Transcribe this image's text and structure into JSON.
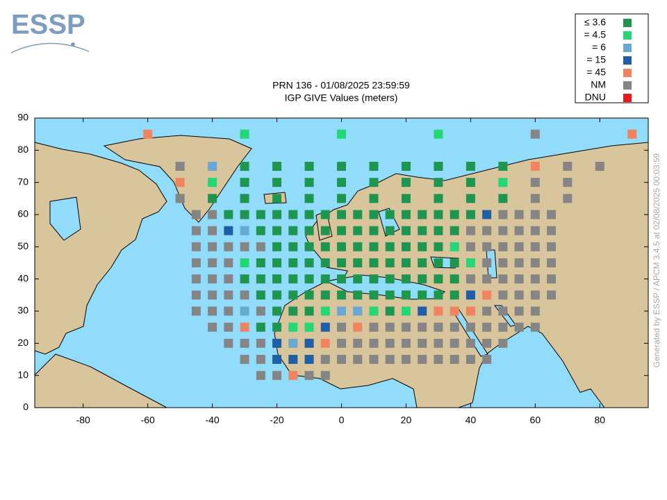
{
  "logo": "ESSP",
  "footer": "Generated by ESSP / APCM 3.4.5 at 02/08/2025 00:03:59",
  "chart_data": {
    "type": "scatter",
    "title": "PRN 136 - 01/08/2025 23:59:59",
    "subtitle": "IGP GIVE Values (meters)",
    "xlim": [
      -95,
      95
    ],
    "ylim": [
      0,
      90
    ],
    "xticks": [
      -80,
      -60,
      -40,
      -20,
      0,
      20,
      40,
      60,
      80
    ],
    "yticks": [
      0,
      10,
      20,
      30,
      40,
      50,
      60,
      70,
      80,
      90
    ],
    "series": [
      {
        "name": "≤ 3.6",
        "color": "#1e9650",
        "data": [
          [
            -30,
            75
          ],
          [
            -20,
            75
          ],
          [
            -10,
            75
          ],
          [
            0,
            75
          ],
          [
            10,
            75
          ],
          [
            20,
            75
          ],
          [
            30,
            75
          ],
          [
            40,
            75
          ],
          [
            50,
            75
          ],
          [
            -30,
            70
          ],
          [
            -20,
            70
          ],
          [
            -10,
            70
          ],
          [
            0,
            70
          ],
          [
            10,
            70
          ],
          [
            20,
            70
          ],
          [
            30,
            70
          ],
          [
            40,
            70
          ],
          [
            -40,
            65
          ],
          [
            -30,
            65
          ],
          [
            -20,
            65
          ],
          [
            -10,
            65
          ],
          [
            0,
            65
          ],
          [
            10,
            65
          ],
          [
            20,
            65
          ],
          [
            30,
            65
          ],
          [
            40,
            65
          ],
          [
            50,
            65
          ],
          [
            -35,
            60
          ],
          [
            -30,
            60
          ],
          [
            -25,
            60
          ],
          [
            -20,
            60
          ],
          [
            -15,
            60
          ],
          [
            -10,
            60
          ],
          [
            -5,
            60
          ],
          [
            0,
            60
          ],
          [
            5,
            60
          ],
          [
            10,
            60
          ],
          [
            15,
            60
          ],
          [
            20,
            60
          ],
          [
            25,
            60
          ],
          [
            30,
            60
          ],
          [
            35,
            60
          ],
          [
            40,
            60
          ],
          [
            -25,
            55
          ],
          [
            -20,
            55
          ],
          [
            -15,
            55
          ],
          [
            -10,
            55
          ],
          [
            -5,
            55
          ],
          [
            0,
            55
          ],
          [
            5,
            55
          ],
          [
            10,
            55
          ],
          [
            15,
            55
          ],
          [
            20,
            55
          ],
          [
            25,
            55
          ],
          [
            30,
            55
          ],
          [
            35,
            55
          ],
          [
            -20,
            50
          ],
          [
            -15,
            50
          ],
          [
            -10,
            50
          ],
          [
            -5,
            50
          ],
          [
            0,
            50
          ],
          [
            5,
            50
          ],
          [
            10,
            50
          ],
          [
            15,
            50
          ],
          [
            20,
            50
          ],
          [
            25,
            50
          ],
          [
            30,
            50
          ],
          [
            -25,
            45
          ],
          [
            -20,
            45
          ],
          [
            -15,
            45
          ],
          [
            -10,
            45
          ],
          [
            -5,
            45
          ],
          [
            0,
            45
          ],
          [
            5,
            45
          ],
          [
            10,
            45
          ],
          [
            15,
            45
          ],
          [
            20,
            45
          ],
          [
            25,
            45
          ],
          [
            30,
            45
          ],
          [
            35,
            45
          ],
          [
            -30,
            40
          ],
          [
            -25,
            40
          ],
          [
            -20,
            40
          ],
          [
            -15,
            40
          ],
          [
            -10,
            40
          ],
          [
            -5,
            40
          ],
          [
            0,
            40
          ],
          [
            5,
            40
          ],
          [
            10,
            40
          ],
          [
            15,
            40
          ],
          [
            20,
            40
          ],
          [
            25,
            40
          ],
          [
            30,
            40
          ],
          [
            35,
            40
          ],
          [
            -25,
            35
          ],
          [
            -20,
            35
          ],
          [
            -15,
            35
          ],
          [
            -10,
            35
          ],
          [
            -5,
            35
          ],
          [
            0,
            35
          ],
          [
            5,
            35
          ],
          [
            10,
            35
          ],
          [
            15,
            35
          ],
          [
            20,
            35
          ],
          [
            25,
            35
          ],
          [
            30,
            35
          ],
          [
            35,
            35
          ],
          [
            -20,
            30
          ],
          [
            -15,
            30
          ],
          [
            -10,
            30
          ],
          [
            15,
            30
          ],
          [
            -25,
            25
          ],
          [
            -20,
            25
          ]
        ]
      },
      {
        "name": "= 4.5",
        "color": "#22d774",
        "data": [
          [
            -30,
            85
          ],
          [
            0,
            85
          ],
          [
            30,
            85
          ],
          [
            -40,
            70
          ],
          [
            50,
            70
          ],
          [
            35,
            50
          ],
          [
            -30,
            45
          ],
          [
            40,
            45
          ],
          [
            -5,
            30
          ],
          [
            10,
            30
          ],
          [
            20,
            30
          ],
          [
            -15,
            25
          ],
          [
            -10,
            25
          ]
        ]
      },
      {
        "name": "= 6",
        "color": "#68a8d2",
        "data": [
          [
            -40,
            75
          ],
          [
            -30,
            55
          ],
          [
            -30,
            30
          ],
          [
            0,
            30
          ],
          [
            5,
            30
          ],
          [
            -15,
            20
          ]
        ]
      },
      {
        "name": "= 15",
        "color": "#1f5fa6",
        "data": [
          [
            45,
            60
          ],
          [
            -35,
            55
          ],
          [
            40,
            35
          ],
          [
            25,
            30
          ],
          [
            -5,
            25
          ],
          [
            -20,
            20
          ],
          [
            -10,
            20
          ],
          [
            -20,
            15
          ],
          [
            -15,
            15
          ],
          [
            -10,
            15
          ]
        ]
      },
      {
        "name": "= 45",
        "color": "#f0845e",
        "data": [
          [
            -60,
            85
          ],
          [
            90,
            85
          ],
          [
            60,
            75
          ],
          [
            -50,
            70
          ],
          [
            45,
            35
          ],
          [
            30,
            30
          ],
          [
            35,
            30
          ],
          [
            40,
            30
          ],
          [
            -30,
            25
          ],
          [
            5,
            25
          ],
          [
            -5,
            20
          ],
          [
            -15,
            10
          ]
        ]
      },
      {
        "name": "NM",
        "color": "#858585",
        "data": [
          [
            60,
            85
          ],
          [
            -50,
            75
          ],
          [
            70,
            75
          ],
          [
            80,
            75
          ],
          [
            60,
            70
          ],
          [
            70,
            70
          ],
          [
            -50,
            65
          ],
          [
            60,
            65
          ],
          [
            70,
            65
          ],
          [
            -45,
            60
          ],
          [
            -40,
            60
          ],
          [
            50,
            60
          ],
          [
            55,
            60
          ],
          [
            60,
            60
          ],
          [
            65,
            60
          ],
          [
            -45,
            55
          ],
          [
            -40,
            55
          ],
          [
            40,
            55
          ],
          [
            45,
            55
          ],
          [
            50,
            55
          ],
          [
            55,
            55
          ],
          [
            60,
            55
          ],
          [
            65,
            55
          ],
          [
            -45,
            50
          ],
          [
            -40,
            50
          ],
          [
            -35,
            50
          ],
          [
            -30,
            50
          ],
          [
            -25,
            50
          ],
          [
            40,
            50
          ],
          [
            45,
            50
          ],
          [
            50,
            50
          ],
          [
            55,
            50
          ],
          [
            60,
            50
          ],
          [
            65,
            50
          ],
          [
            -45,
            45
          ],
          [
            -40,
            45
          ],
          [
            -35,
            45
          ],
          [
            45,
            45
          ],
          [
            50,
            45
          ],
          [
            55,
            45
          ],
          [
            60,
            45
          ],
          [
            65,
            45
          ],
          [
            -45,
            40
          ],
          [
            -40,
            40
          ],
          [
            -35,
            40
          ],
          [
            40,
            40
          ],
          [
            45,
            40
          ],
          [
            50,
            40
          ],
          [
            55,
            40
          ],
          [
            60,
            40
          ],
          [
            65,
            40
          ],
          [
            -45,
            35
          ],
          [
            -40,
            35
          ],
          [
            -35,
            35
          ],
          [
            -30,
            35
          ],
          [
            50,
            35
          ],
          [
            55,
            35
          ],
          [
            60,
            35
          ],
          [
            65,
            35
          ],
          [
            -45,
            30
          ],
          [
            -40,
            30
          ],
          [
            -35,
            30
          ],
          [
            -25,
            30
          ],
          [
            45,
            30
          ],
          [
            50,
            30
          ],
          [
            55,
            30
          ],
          [
            60,
            30
          ],
          [
            -40,
            25
          ],
          [
            -35,
            25
          ],
          [
            0,
            25
          ],
          [
            10,
            25
          ],
          [
            15,
            25
          ],
          [
            20,
            25
          ],
          [
            25,
            25
          ],
          [
            30,
            25
          ],
          [
            35,
            25
          ],
          [
            40,
            25
          ],
          [
            45,
            25
          ],
          [
            50,
            25
          ],
          [
            55,
            25
          ],
          [
            60,
            25
          ],
          [
            -35,
            20
          ],
          [
            -30,
            20
          ],
          [
            -25,
            20
          ],
          [
            0,
            20
          ],
          [
            5,
            20
          ],
          [
            10,
            20
          ],
          [
            15,
            20
          ],
          [
            20,
            20
          ],
          [
            25,
            20
          ],
          [
            30,
            20
          ],
          [
            35,
            20
          ],
          [
            40,
            20
          ],
          [
            45,
            20
          ],
          [
            50,
            20
          ],
          [
            -30,
            15
          ],
          [
            -25,
            15
          ],
          [
            -5,
            15
          ],
          [
            0,
            15
          ],
          [
            5,
            15
          ],
          [
            10,
            15
          ],
          [
            15,
            15
          ],
          [
            20,
            15
          ],
          [
            25,
            15
          ],
          [
            30,
            15
          ],
          [
            35,
            15
          ],
          [
            40,
            15
          ],
          [
            45,
            15
          ],
          [
            -25,
            10
          ],
          [
            -20,
            10
          ],
          [
            -10,
            10
          ],
          [
            -5,
            10
          ]
        ]
      },
      {
        "name": "DNU",
        "color": "#e41a1c",
        "data": []
      }
    ]
  }
}
